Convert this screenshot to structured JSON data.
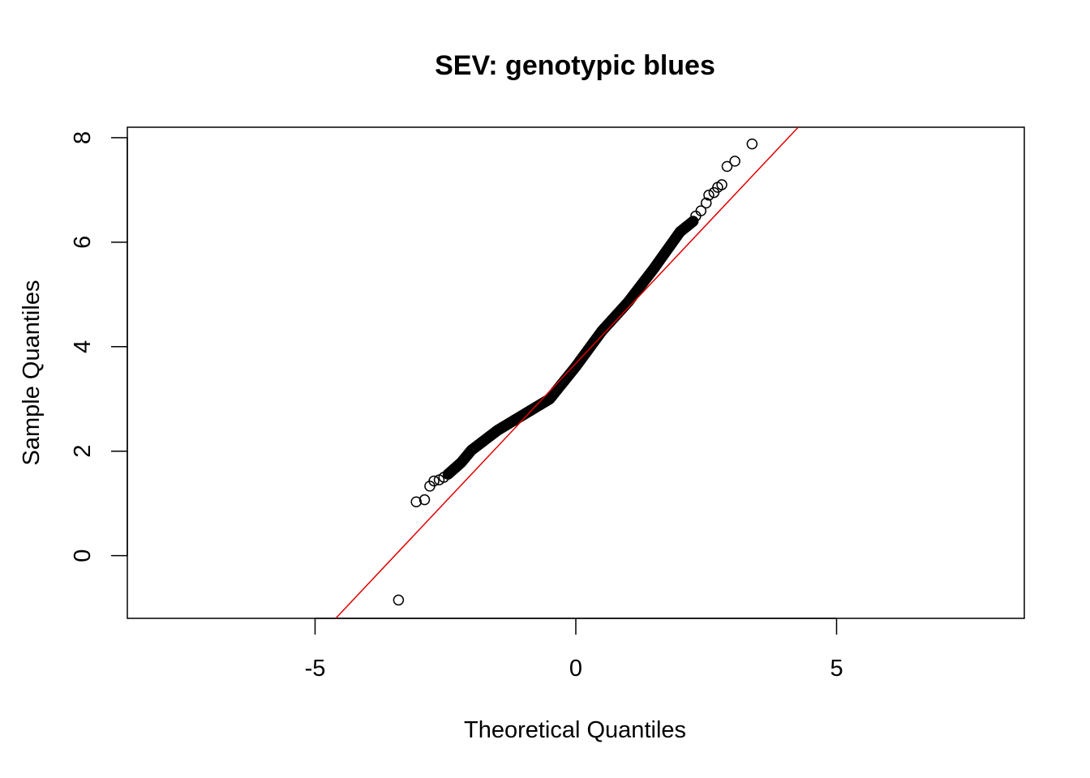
{
  "chart_data": {
    "type": "scatter",
    "title": "SEV: genotypic blues",
    "xlabel": "Theoretical Quantiles",
    "ylabel": "Sample Quantiles",
    "xlim": [
      -8.6,
      8.6
    ],
    "ylim": [
      -1.2,
      8.2
    ],
    "xticks": [
      -5,
      0,
      5
    ],
    "xtick_labels": [
      "-5",
      "0",
      "5"
    ],
    "yticks": [
      0,
      2,
      4,
      6,
      8
    ],
    "ytick_labels": [
      "0",
      "2",
      "4",
      "6",
      "8"
    ],
    "grid": false,
    "point_color": "#000000",
    "line_color": "#e00000",
    "reference_line": {
      "slope": 1.06,
      "intercept": 3.68
    },
    "outlier_points": [
      {
        "x": -3.4,
        "y": -0.85
      },
      {
        "x": -3.06,
        "y": 1.03
      },
      {
        "x": -2.9,
        "y": 1.07
      },
      {
        "x": -2.8,
        "y": 1.33
      },
      {
        "x": -2.72,
        "y": 1.43
      },
      {
        "x": -2.62,
        "y": 1.45
      },
      {
        "x": -2.53,
        "y": 1.5
      },
      {
        "x": 2.3,
        "y": 6.5
      },
      {
        "x": 2.4,
        "y": 6.6
      },
      {
        "x": 2.5,
        "y": 6.75
      },
      {
        "x": 2.55,
        "y": 6.9
      },
      {
        "x": 2.65,
        "y": 6.95
      },
      {
        "x": 2.72,
        "y": 7.05
      },
      {
        "x": 2.8,
        "y": 7.1
      },
      {
        "x": 2.9,
        "y": 7.45
      },
      {
        "x": 3.05,
        "y": 7.55
      },
      {
        "x": 3.38,
        "y": 7.88
      }
    ],
    "main_curve": [
      {
        "x": -2.45,
        "y": 1.56
      },
      {
        "x": -2.2,
        "y": 1.78
      },
      {
        "x": -2.0,
        "y": 2.02
      },
      {
        "x": -1.5,
        "y": 2.4
      },
      {
        "x": -1.0,
        "y": 2.7
      },
      {
        "x": -0.5,
        "y": 3.0
      },
      {
        "x": 0.0,
        "y": 3.62
      },
      {
        "x": 0.5,
        "y": 4.3
      },
      {
        "x": 1.0,
        "y": 4.85
      },
      {
        "x": 1.5,
        "y": 5.5
      },
      {
        "x": 2.0,
        "y": 6.2
      },
      {
        "x": 2.25,
        "y": 6.4
      }
    ]
  }
}
